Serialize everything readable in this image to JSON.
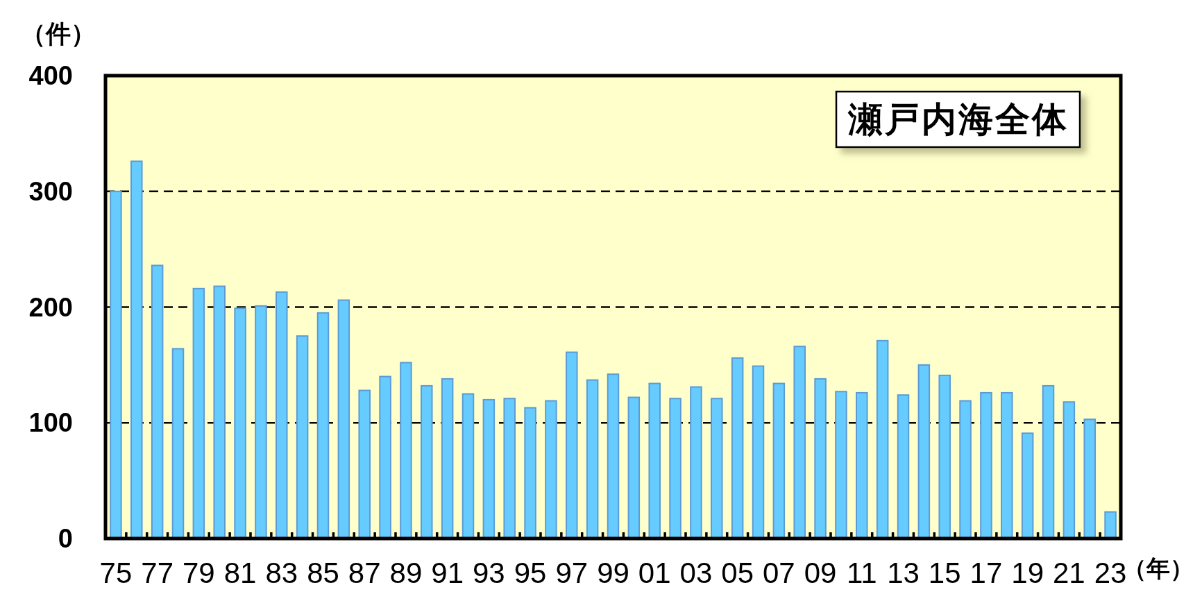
{
  "chart_data": {
    "type": "bar",
    "title": "瀬戸内海全体",
    "xlabel": "（年）",
    "ylabel": "（件）",
    "categories": [
      "75",
      null,
      "77",
      null,
      "79",
      null,
      "81",
      null,
      "83",
      null,
      "85",
      null,
      "87",
      null,
      "89",
      null,
      "91",
      null,
      "93",
      null,
      "95",
      null,
      "97",
      null,
      "99",
      null,
      "01",
      null,
      "03",
      null,
      "05",
      null,
      "07",
      null,
      "09",
      null,
      "11",
      null,
      "13",
      null,
      "15",
      null,
      "17",
      null,
      "19",
      null,
      "21",
      null,
      "23"
    ],
    "values": [
      300,
      326,
      236,
      164,
      216,
      218,
      199,
      201,
      213,
      175,
      195,
      206,
      128,
      140,
      152,
      132,
      138,
      125,
      120,
      121,
      113,
      119,
      161,
      137,
      142,
      122,
      134,
      121,
      131,
      121,
      156,
      149,
      134,
      166,
      138,
      127,
      126,
      171,
      124,
      150,
      141,
      119,
      126,
      126,
      91,
      132,
      118,
      103,
      23
    ],
    "color": "#66ccff",
    "ylim": [
      0,
      400
    ],
    "yticks": [
      0,
      100,
      200,
      300,
      400
    ],
    "grid": "y"
  }
}
